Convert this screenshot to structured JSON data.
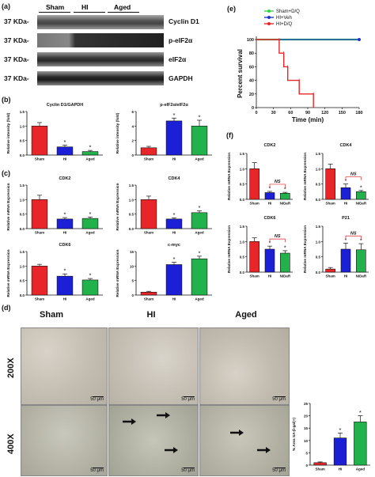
{
  "panels": {
    "a": "(a)",
    "b": "(b)",
    "c": "(c)",
    "d": "(d)",
    "e": "(e)",
    "f": "(f)"
  },
  "western_blot": {
    "groups": [
      "Sham",
      "HI",
      "Aged"
    ],
    "rows": [
      {
        "kda": "37 KDa-",
        "protein": "Cyclin D1"
      },
      {
        "kda": "37 KDa-",
        "protein": "p-eIF2α"
      },
      {
        "kda": "37 KDa-",
        "protein": "eIF2α"
      },
      {
        "kda": "37 KDa-",
        "protein": "GAPDH"
      }
    ]
  },
  "colors": {
    "sham": "#e8262a",
    "hi": "#1b1fd6",
    "aged": "#22b24c",
    "green_line": "#3bd24a",
    "blue_line": "#2233cc",
    "red_line": "#e8262a"
  },
  "chart_data": [
    {
      "id": "b1",
      "type": "bar",
      "title": "Cyclin D1/GAPDH",
      "ylabel": "Relative intensity (fold)",
      "categories": [
        "Sham",
        "HI",
        "Aged"
      ],
      "values": [
        1.0,
        0.28,
        0.12
      ],
      "errors": [
        0.12,
        0.06,
        0.04
      ],
      "stars": [
        "",
        "*",
        "*"
      ],
      "ylim": [
        0,
        1.5
      ],
      "yticks": [
        "0.0",
        "0.5",
        "1.0",
        "1.5"
      ]
    },
    {
      "id": "b2",
      "type": "bar",
      "title": "p-eIF2α/eIF2α",
      "ylabel": "Relative intensity (fold)",
      "categories": [
        "Sham",
        "HI",
        "Aged"
      ],
      "values": [
        1.0,
        4.7,
        4.0
      ],
      "errors": [
        0.2,
        0.4,
        0.8
      ],
      "stars": [
        "",
        "*",
        "*"
      ],
      "ylim": [
        0,
        6
      ],
      "yticks": [
        "0",
        "2",
        "4",
        "6"
      ]
    },
    {
      "id": "c1",
      "type": "bar",
      "title": "CDK2",
      "ylabel": "Relative mRNA Expression",
      "categories": [
        "Sham",
        "HI",
        "Aged"
      ],
      "values": [
        1.0,
        0.33,
        0.35
      ],
      "errors": [
        0.15,
        0.05,
        0.05
      ],
      "stars": [
        "",
        "*",
        "*"
      ],
      "ylim": [
        0,
        1.5
      ],
      "yticks": [
        "0.0",
        "0.5",
        "1.0",
        "1.5"
      ]
    },
    {
      "id": "c2",
      "type": "bar",
      "title": "CDK4",
      "ylabel": "Relative mRNA Expression",
      "categories": [
        "Sham",
        "HI",
        "Aged"
      ],
      "values": [
        1.0,
        0.33,
        0.55
      ],
      "errors": [
        0.12,
        0.04,
        0.06
      ],
      "stars": [
        "",
        "*",
        "*"
      ],
      "ylim": [
        0,
        1.5
      ],
      "yticks": [
        "0.0",
        "0.5",
        "1.0",
        "1.5"
      ]
    },
    {
      "id": "c3",
      "type": "bar",
      "title": "CDK6",
      "ylabel": "Relative mRNA Expression",
      "categories": [
        "Sham",
        "HI",
        "Aged"
      ],
      "values": [
        1.0,
        0.65,
        0.52
      ],
      "errors": [
        0.06,
        0.08,
        0.05
      ],
      "stars": [
        "",
        "*",
        "*"
      ],
      "ylim": [
        0,
        1.5
      ],
      "yticks": [
        "0.0",
        "0.5",
        "1.0",
        "1.5"
      ]
    },
    {
      "id": "c4",
      "type": "bar",
      "title": "c-myc",
      "ylabel": "Relative mRNA Expression",
      "categories": [
        "Sham",
        "HI",
        "Aged"
      ],
      "values": [
        1.0,
        10.5,
        12.5
      ],
      "errors": [
        0.3,
        0.8,
        0.9
      ],
      "stars": [
        "",
        "*",
        "*"
      ],
      "ylim": [
        0,
        15
      ],
      "yticks": [
        "0",
        "5",
        "10",
        "15"
      ]
    },
    {
      "id": "e",
      "type": "line",
      "ylabel": "Percent survival",
      "xlabel": "Time (min)",
      "xlim": [
        0,
        180
      ],
      "ylim": [
        0,
        100
      ],
      "xticks": [
        "0",
        "30",
        "60",
        "90",
        "120",
        "150",
        "180"
      ],
      "yticks": [
        "0",
        "20",
        "40",
        "60",
        "80",
        "100"
      ],
      "series": [
        {
          "name": "Sham+D/Q",
          "points": [
            [
              0,
              100
            ],
            [
              180,
              100
            ]
          ]
        },
        {
          "name": "HI+Veh",
          "points": [
            [
              0,
              100
            ],
            [
              180,
              100
            ]
          ]
        },
        {
          "name": "HI+D/Q",
          "points": [
            [
              0,
              100
            ],
            [
              40,
              100
            ],
            [
              40,
              80
            ],
            [
              48,
              80
            ],
            [
              48,
              60
            ],
            [
              55,
              60
            ],
            [
              55,
              40
            ],
            [
              75,
              40
            ],
            [
              75,
              20
            ],
            [
              100,
              20
            ],
            [
              100,
              0
            ]
          ]
        }
      ]
    },
    {
      "id": "f1",
      "type": "bar",
      "title": "CDK2",
      "ylabel": "Relative mRNA Expression",
      "categories": [
        "Sham",
        "HI",
        "NiDaR"
      ],
      "values": [
        1.0,
        0.22,
        0.2
      ],
      "errors": [
        0.2,
        0.04,
        0.03
      ],
      "stars": [
        "",
        "*",
        "*"
      ],
      "ns": "NS",
      "ylim": [
        0,
        1.5
      ],
      "yticks": [
        "0.0",
        "0.5",
        "1.0",
        "1.5"
      ]
    },
    {
      "id": "f2",
      "type": "bar",
      "title": "CDK4",
      "ylabel": "Relative mRNA Expression",
      "categories": [
        "Sham",
        "HI",
        "NiDaR"
      ],
      "values": [
        1.0,
        0.38,
        0.25
      ],
      "errors": [
        0.15,
        0.12,
        0.04
      ],
      "stars": [
        "",
        "*",
        "*"
      ],
      "ns": "NS",
      "ylim": [
        0,
        1.5
      ],
      "yticks": [
        "0.0",
        "0.5",
        "1.0",
        "1.5"
      ]
    },
    {
      "id": "f3",
      "type": "bar",
      "title": "CDK6",
      "ylabel": "Relative mRNA Expression",
      "categories": [
        "Sham",
        "HI",
        "NiDaR"
      ],
      "values": [
        1.0,
        0.75,
        0.62
      ],
      "errors": [
        0.12,
        0.1,
        0.08
      ],
      "stars": [
        "",
        "*",
        "*"
      ],
      "ns": "NS",
      "ylim": [
        0,
        1.5
      ],
      "yticks": [
        "0.0",
        "0.5",
        "1.0",
        "1.5"
      ]
    },
    {
      "id": "f4",
      "type": "bar",
      "title": "P21",
      "ylabel": "Relative mRNA Expression",
      "categories": [
        "Sham",
        "HI",
        "NiDaR"
      ],
      "values": [
        0.1,
        0.75,
        0.73
      ],
      "errors": [
        0.05,
        0.2,
        0.2
      ],
      "stars": [
        "",
        "*",
        "*"
      ],
      "ns": "NS",
      "ylim": [
        0,
        1.5
      ],
      "yticks": [
        "0.0",
        "0.5",
        "1.0",
        "1.5"
      ]
    },
    {
      "id": "d",
      "type": "bar",
      "ylabel": "% Area SA-β-gal(+)",
      "categories": [
        "Sham",
        "HI",
        "Aged"
      ],
      "values": [
        1.0,
        11.0,
        17.5
      ],
      "errors": [
        0.3,
        2.0,
        2.5
      ],
      "stars": [
        "",
        "*",
        "*"
      ],
      "ylim": [
        0,
        25
      ],
      "yticks": [
        "0",
        "5",
        "10",
        "15",
        "20",
        "25"
      ]
    }
  ],
  "micrographs": {
    "groups": [
      "Sham",
      "HI",
      "Aged"
    ],
    "magnifications": [
      "200X",
      "400X"
    ],
    "scale_bar": "50 μm"
  }
}
